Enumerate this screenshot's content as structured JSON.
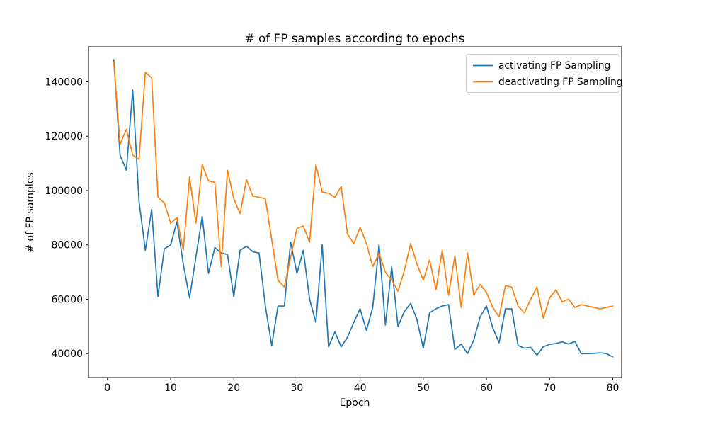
{
  "chart_data": {
    "type": "line",
    "title": "# of FP samples according to epochs",
    "xlabel": "Epoch",
    "ylabel": "# of FP samples",
    "x_epochs": [
      1,
      2,
      3,
      4,
      5,
      6,
      7,
      8,
      9,
      10,
      11,
      12,
      13,
      14,
      15,
      16,
      17,
      18,
      19,
      20,
      21,
      22,
      23,
      24,
      25,
      26,
      27,
      28,
      29,
      30,
      31,
      32,
      33,
      34,
      35,
      36,
      37,
      38,
      39,
      40,
      41,
      42,
      43,
      44,
      45,
      46,
      47,
      48,
      49,
      50,
      51,
      52,
      53,
      54,
      55,
      56,
      57,
      58,
      59,
      60,
      61,
      62,
      63,
      64,
      65,
      66,
      67,
      68,
      69,
      70,
      71,
      72,
      73,
      74,
      75,
      76,
      77,
      78,
      79,
      80
    ],
    "series": [
      {
        "name": "activating FP Sampling",
        "color": "#1f77b4",
        "values": [
          148200,
          113000,
          107500,
          137000,
          96000,
          78000,
          93000,
          61000,
          78500,
          80000,
          88500,
          73000,
          60500,
          75500,
          90500,
          69500,
          79000,
          77000,
          76500,
          61000,
          78000,
          79500,
          77500,
          77000,
          57500,
          43000,
          57500,
          57500,
          81000,
          69500,
          78000,
          60000,
          51500,
          80000,
          42500,
          48000,
          42500,
          46000,
          51500,
          56500,
          48500,
          57000,
          80000,
          50500,
          72000,
          50000,
          55500,
          58500,
          52500,
          42000,
          55000,
          56500,
          57500,
          58000,
          41500,
          43500,
          40000,
          45000,
          53500,
          57500,
          49500,
          44000,
          56500,
          56500,
          43000,
          42000,
          42300,
          39400,
          42500,
          43400,
          43700,
          44300,
          43500,
          44500,
          40000,
          40000,
          40100,
          40300,
          40000,
          38800
        ]
      },
      {
        "name": "deactivating FP Sampling",
        "color": "#ff7f0e",
        "values": [
          147400,
          117000,
          122500,
          113000,
          111500,
          143500,
          141500,
          97500,
          95500,
          88000,
          90000,
          78000,
          105000,
          88000,
          109500,
          103500,
          103000,
          72000,
          107500,
          97000,
          91500,
          104000,
          98000,
          97500,
          97000,
          82000,
          67000,
          64500,
          75500,
          86000,
          87000,
          81000,
          109500,
          99500,
          99000,
          97500,
          101500,
          84000,
          80500,
          86500,
          80500,
          72000,
          77000,
          70000,
          67000,
          63000,
          70500,
          80500,
          73000,
          67000,
          74500,
          63500,
          78000,
          61500,
          76000,
          57000,
          77000,
          61500,
          65500,
          62500,
          57000,
          53500,
          65000,
          64500,
          57500,
          55000,
          60000,
          64500,
          53000,
          60500,
          63500,
          59000,
          60000,
          57000,
          58000,
          57500,
          57000,
          56500,
          57000,
          57500
        ]
      }
    ],
    "xticks": [
      0,
      10,
      20,
      30,
      40,
      50,
      60,
      70,
      80
    ],
    "yticks": [
      40000,
      60000,
      80000,
      100000,
      120000,
      140000
    ],
    "xlim": [
      -3.0,
      81.4
    ],
    "ylim": [
      31200,
      152900
    ],
    "grid": false,
    "legend_position": "upper right",
    "background_color": "#ffffff",
    "spine_color": "#000000",
    "legend_border_color": "#cccccc"
  }
}
